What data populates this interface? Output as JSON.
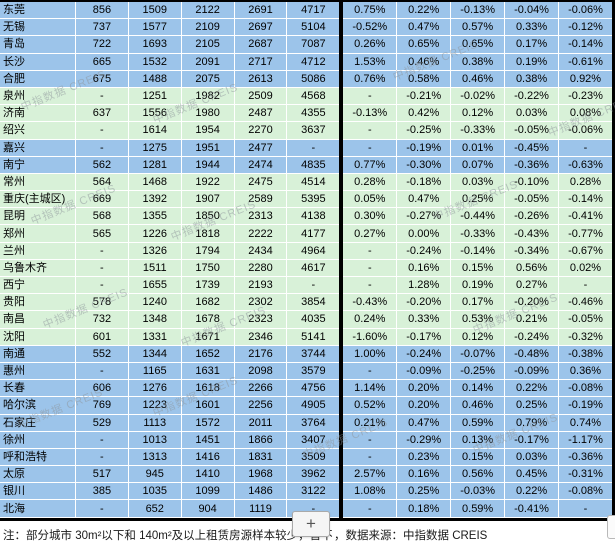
{
  "colors": {
    "row_blue": "#9cc4ea",
    "row_green": "#d8f1d8",
    "table_border": "#000000",
    "watermark": "#8e959b",
    "button_bg": "#f5f5f5",
    "button_border": "#a9a9a9"
  },
  "watermark": {
    "text": "中指数据 CREIS"
  },
  "zoom_button": {
    "label": "+"
  },
  "footer": {
    "note_left": "注：部分城市 30m²以下和 140m²及以上租赁房源样本较少，暂不",
    "note_right": "，数据来源：中指数据 CREIS"
  },
  "table": {
    "rows": [
      {
        "city": "东莞",
        "color": "blue",
        "values": [
          "856",
          "1509",
          "2122",
          "2691",
          "4717"
        ],
        "pcts": [
          "0.75%",
          "0.22%",
          "-0.13%",
          "-0.04%",
          "-0.06%"
        ]
      },
      {
        "city": "无锡",
        "color": "blue",
        "values": [
          "737",
          "1577",
          "2109",
          "2697",
          "5104"
        ],
        "pcts": [
          "-0.52%",
          "0.47%",
          "0.57%",
          "0.33%",
          "-0.12%"
        ]
      },
      {
        "city": "青岛",
        "color": "blue",
        "values": [
          "722",
          "1693",
          "2105",
          "2687",
          "7087"
        ],
        "pcts": [
          "0.26%",
          "0.65%",
          "0.65%",
          "0.17%",
          "-0.14%"
        ]
      },
      {
        "city": "长沙",
        "color": "blue",
        "values": [
          "665",
          "1532",
          "2091",
          "2717",
          "4712"
        ],
        "pcts": [
          "1.53%",
          "0.46%",
          "0.38%",
          "0.19%",
          "-0.61%"
        ]
      },
      {
        "city": "合肥",
        "color": "blue",
        "values": [
          "675",
          "1488",
          "2075",
          "2613",
          "5086"
        ],
        "pcts": [
          "0.76%",
          "0.58%",
          "0.46%",
          "0.38%",
          "0.92%"
        ]
      },
      {
        "city": "泉州",
        "color": "green",
        "values": [
          "-",
          "1251",
          "1982",
          "2509",
          "4568"
        ],
        "pcts": [
          "-",
          "-0.21%",
          "-0.02%",
          "-0.22%",
          "-0.23%"
        ]
      },
      {
        "city": "济南",
        "color": "green",
        "values": [
          "637",
          "1556",
          "1980",
          "2487",
          "4355"
        ],
        "pcts": [
          "-0.13%",
          "0.42%",
          "0.12%",
          "0.03%",
          "0.08%"
        ]
      },
      {
        "city": "绍兴",
        "color": "green",
        "values": [
          "-",
          "1614",
          "1954",
          "2270",
          "3637"
        ],
        "pcts": [
          "-",
          "-0.25%",
          "-0.33%",
          "-0.05%",
          "-0.06%"
        ]
      },
      {
        "city": "嘉兴",
        "color": "blue",
        "values": [
          "-",
          "1275",
          "1951",
          "2477",
          "-"
        ],
        "pcts": [
          "-",
          "-0.19%",
          "0.01%",
          "-0.45%",
          "-"
        ]
      },
      {
        "city": "南宁",
        "color": "blue",
        "values": [
          "562",
          "1281",
          "1944",
          "2474",
          "4835"
        ],
        "pcts": [
          "0.77%",
          "-0.30%",
          "0.07%",
          "-0.36%",
          "-0.63%"
        ]
      },
      {
        "city": "常州",
        "color": "green",
        "values": [
          "564",
          "1468",
          "1922",
          "2475",
          "4514"
        ],
        "pcts": [
          "0.28%",
          "-0.18%",
          "0.03%",
          "-0.10%",
          "0.28%"
        ]
      },
      {
        "city": "重庆(主城区)",
        "color": "green",
        "values": [
          "669",
          "1392",
          "1907",
          "2589",
          "5395"
        ],
        "pcts": [
          "0.05%",
          "0.47%",
          "0.25%",
          "-0.05%",
          "-0.14%"
        ]
      },
      {
        "city": "昆明",
        "color": "green",
        "values": [
          "568",
          "1355",
          "1850",
          "2313",
          "4138"
        ],
        "pcts": [
          "0.30%",
          "-0.27%",
          "-0.44%",
          "-0.26%",
          "-0.41%"
        ]
      },
      {
        "city": "郑州",
        "color": "green",
        "values": [
          "565",
          "1226",
          "1818",
          "2222",
          "4177"
        ],
        "pcts": [
          "0.27%",
          "0.00%",
          "-0.33%",
          "-0.43%",
          "-0.77%"
        ]
      },
      {
        "city": "兰州",
        "color": "green",
        "values": [
          "-",
          "1326",
          "1794",
          "2434",
          "4964"
        ],
        "pcts": [
          "-",
          "-0.24%",
          "-0.14%",
          "-0.34%",
          "-0.67%"
        ]
      },
      {
        "city": "乌鲁木齐",
        "color": "green",
        "values": [
          "-",
          "1511",
          "1750",
          "2280",
          "4617"
        ],
        "pcts": [
          "-",
          "0.16%",
          "0.15%",
          "0.56%",
          "0.02%"
        ]
      },
      {
        "city": "西宁",
        "color": "green",
        "values": [
          "-",
          "1655",
          "1739",
          "2193",
          "-"
        ],
        "pcts": [
          "-",
          "1.28%",
          "0.19%",
          "0.27%",
          "-"
        ]
      },
      {
        "city": "贵阳",
        "color": "green",
        "values": [
          "578",
          "1240",
          "1682",
          "2302",
          "3854"
        ],
        "pcts": [
          "-0.43%",
          "-0.20%",
          "0.17%",
          "-0.20%",
          "-0.46%"
        ]
      },
      {
        "city": "南昌",
        "color": "green",
        "values": [
          "732",
          "1348",
          "1678",
          "2323",
          "4035"
        ],
        "pcts": [
          "0.24%",
          "0.33%",
          "0.53%",
          "0.21%",
          "-0.05%"
        ]
      },
      {
        "city": "沈阳",
        "color": "green",
        "values": [
          "601",
          "1331",
          "1671",
          "2346",
          "5141"
        ],
        "pcts": [
          "-1.60%",
          "-0.17%",
          "0.12%",
          "-0.24%",
          "-0.32%"
        ]
      },
      {
        "city": "南通",
        "color": "blue",
        "values": [
          "552",
          "1344",
          "1652",
          "2176",
          "3744"
        ],
        "pcts": [
          "1.00%",
          "-0.24%",
          "-0.07%",
          "-0.48%",
          "-0.38%"
        ]
      },
      {
        "city": "惠州",
        "color": "blue",
        "values": [
          "-",
          "1165",
          "1631",
          "2098",
          "3579"
        ],
        "pcts": [
          "-",
          "-0.09%",
          "-0.25%",
          "-0.09%",
          "0.36%"
        ]
      },
      {
        "city": "长春",
        "color": "blue",
        "values": [
          "606",
          "1276",
          "1618",
          "2266",
          "4756"
        ],
        "pcts": [
          "1.14%",
          "0.20%",
          "0.14%",
          "0.22%",
          "-0.08%"
        ]
      },
      {
        "city": "哈尔滨",
        "color": "blue",
        "values": [
          "769",
          "1223",
          "1601",
          "2256",
          "4905"
        ],
        "pcts": [
          "0.52%",
          "0.20%",
          "0.46%",
          "0.25%",
          "-0.19%"
        ]
      },
      {
        "city": "石家庄",
        "color": "blue",
        "values": [
          "529",
          "1113",
          "1572",
          "2011",
          "3764"
        ],
        "pcts": [
          "0.21%",
          "0.47%",
          "0.59%",
          "0.79%",
          "0.74%"
        ]
      },
      {
        "city": "徐州",
        "color": "blue",
        "values": [
          "-",
          "1013",
          "1451",
          "1866",
          "3407"
        ],
        "pcts": [
          "-",
          "-0.29%",
          "0.13%",
          "-0.17%",
          "-1.17%"
        ]
      },
      {
        "city": "呼和浩特",
        "color": "blue",
        "values": [
          "-",
          "1313",
          "1416",
          "1831",
          "3509"
        ],
        "pcts": [
          "-",
          "0.23%",
          "0.15%",
          "0.03%",
          "-0.36%"
        ]
      },
      {
        "city": "太原",
        "color": "blue",
        "values": [
          "517",
          "945",
          "1410",
          "1968",
          "3962"
        ],
        "pcts": [
          "2.57%",
          "0.16%",
          "0.56%",
          "0.45%",
          "-0.31%"
        ]
      },
      {
        "city": "银川",
        "color": "blue",
        "values": [
          "385",
          "1035",
          "1099",
          "1486",
          "3122"
        ],
        "pcts": [
          "1.08%",
          "0.25%",
          "-0.03%",
          "0.22%",
          "-0.08%"
        ]
      },
      {
        "city": "北海",
        "color": "blue",
        "values": [
          "-",
          "652",
          "904",
          "1119",
          "-"
        ],
        "pcts": [
          "-",
          "0.18%",
          "0.59%",
          "-0.41%",
          "-"
        ]
      }
    ]
  }
}
